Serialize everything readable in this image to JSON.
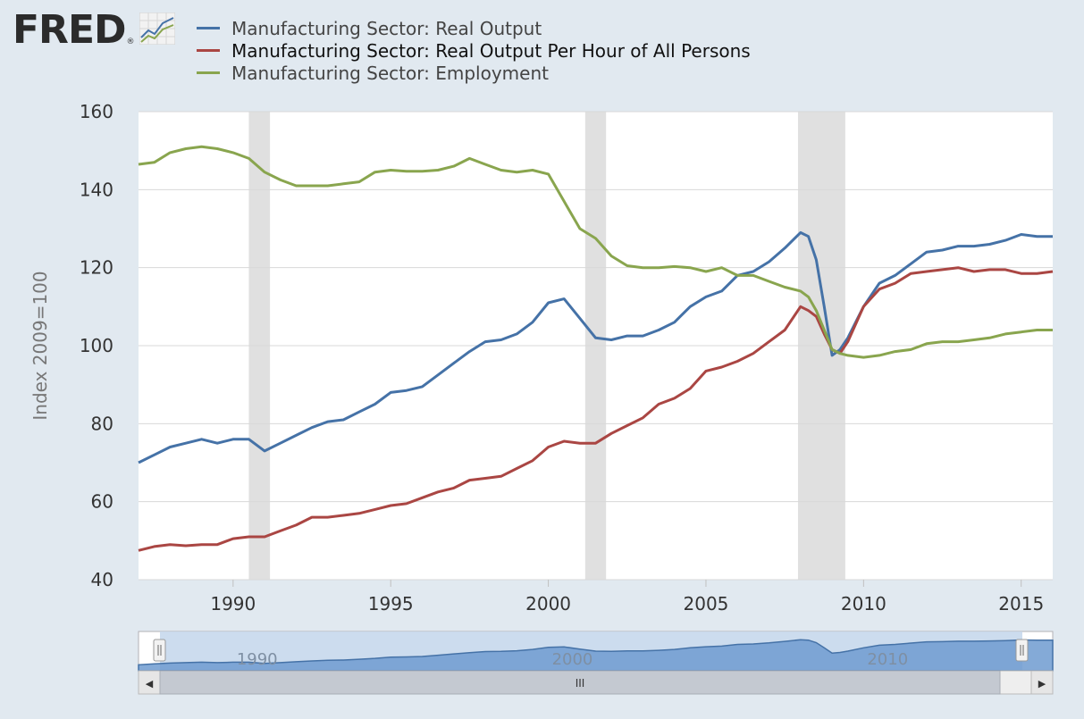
{
  "logo": {
    "text": "FRED",
    "registered": "®",
    "icon": "fred-chart-icon"
  },
  "colors": {
    "real_output": "#4572a7",
    "productivity": "#aa4643",
    "employment": "#89a54e",
    "recession": "#e0e0e0",
    "grid": "#d8d8d8"
  },
  "navigator": {
    "labels": [
      "1990",
      "2000",
      "2010"
    ],
    "scrollbar_grip": "III",
    "left_arrow": "◀",
    "right_arrow": "▶"
  },
  "chart_data": {
    "type": "line",
    "xlim": [
      1987.0,
      2016.0
    ],
    "ylim": [
      40,
      160
    ],
    "yticks": [
      40,
      60,
      80,
      100,
      120,
      140,
      160
    ],
    "xticks": [
      1990,
      1995,
      2000,
      2005,
      2010,
      2015
    ],
    "ylabel": "Index 2009=100",
    "grid": true,
    "legend_position": "top",
    "recessions": [
      [
        1990.5,
        1991.17
      ],
      [
        2001.17,
        2001.83
      ],
      [
        2007.92,
        2009.42
      ]
    ],
    "series": [
      {
        "name": "Manufacturing Sector: Real Output",
        "color": "#4572a7",
        "x": [
          1987.0,
          1987.5,
          1988.0,
          1988.5,
          1989.0,
          1989.5,
          1990.0,
          1990.5,
          1991.0,
          1991.5,
          1992.0,
          1992.5,
          1993.0,
          1993.5,
          1994.0,
          1994.5,
          1995.0,
          1995.5,
          1996.0,
          1996.5,
          1997.0,
          1997.5,
          1998.0,
          1998.5,
          1999.0,
          1999.5,
          2000.0,
          2000.5,
          2001.0,
          2001.5,
          2002.0,
          2002.5,
          2003.0,
          2003.5,
          2004.0,
          2004.5,
          2005.0,
          2005.5,
          2006.0,
          2006.5,
          2007.0,
          2007.5,
          2008.0,
          2008.25,
          2008.5,
          2008.75,
          2009.0,
          2009.25,
          2009.5,
          2010.0,
          2010.5,
          2011.0,
          2011.5,
          2012.0,
          2012.5,
          2013.0,
          2013.5,
          2014.0,
          2014.5,
          2015.0,
          2015.5,
          2016.0
        ],
        "y": [
          70,
          72,
          74,
          75,
          76,
          75,
          76,
          76,
          73,
          75,
          77,
          79,
          80.5,
          81,
          83,
          85,
          88,
          88.5,
          89.5,
          92.5,
          95.5,
          98.5,
          101,
          101.5,
          103,
          106,
          111,
          112,
          107,
          102,
          101.5,
          102.5,
          102.5,
          104,
          106,
          110,
          112.5,
          114,
          118,
          119,
          121.5,
          125,
          129,
          128,
          122,
          110,
          97.5,
          99,
          102,
          110,
          116,
          118,
          121,
          124,
          124.5,
          125.5,
          125.5,
          126,
          127,
          128.5,
          128,
          128
        ]
      },
      {
        "name": "Manufacturing Sector: Real Output Per Hour of All Persons",
        "color": "#aa4643",
        "x": [
          1987.0,
          1987.5,
          1988.0,
          1988.5,
          1989.0,
          1989.5,
          1990.0,
          1990.5,
          1991.0,
          1991.5,
          1992.0,
          1992.5,
          1993.0,
          1993.5,
          1994.0,
          1994.5,
          1995.0,
          1995.5,
          1996.0,
          1996.5,
          1997.0,
          1997.5,
          1998.0,
          1998.5,
          1999.0,
          1999.5,
          2000.0,
          2000.5,
          2001.0,
          2001.5,
          2002.0,
          2002.5,
          2003.0,
          2003.5,
          2004.0,
          2004.5,
          2005.0,
          2005.5,
          2006.0,
          2006.5,
          2007.0,
          2007.5,
          2008.0,
          2008.25,
          2008.5,
          2008.75,
          2009.0,
          2009.25,
          2009.5,
          2010.0,
          2010.5,
          2011.0,
          2011.5,
          2012.0,
          2012.5,
          2013.0,
          2013.5,
          2014.0,
          2014.5,
          2015.0,
          2015.5,
          2016.0
        ],
        "y": [
          47.5,
          48.5,
          49,
          48.7,
          49,
          49,
          50.5,
          51,
          51,
          52.5,
          54,
          56,
          56,
          56.5,
          57,
          58,
          59,
          59.5,
          61,
          62.5,
          63.5,
          65.5,
          66,
          66.5,
          68.5,
          70.5,
          74,
          75.5,
          75,
          75,
          77.5,
          79.5,
          81.5,
          85,
          86.5,
          89,
          93.5,
          94.5,
          96,
          98,
          101,
          104,
          110,
          109,
          107.5,
          103,
          99,
          98,
          101,
          110,
          114.5,
          116,
          118.5,
          119,
          119.5,
          120,
          119,
          119.5,
          119.5,
          118.5,
          118.5,
          119
        ]
      },
      {
        "name": "Manufacturing Sector: Employment",
        "color": "#89a54e",
        "x": [
          1987.0,
          1987.5,
          1988.0,
          1988.5,
          1989.0,
          1989.5,
          1990.0,
          1990.5,
          1991.0,
          1991.5,
          1992.0,
          1992.5,
          1993.0,
          1993.5,
          1994.0,
          1994.5,
          1995.0,
          1995.5,
          1996.0,
          1996.5,
          1997.0,
          1997.5,
          1998.0,
          1998.5,
          1999.0,
          1999.5,
          2000.0,
          2000.5,
          2001.0,
          2001.5,
          2002.0,
          2002.5,
          2003.0,
          2003.5,
          2004.0,
          2004.5,
          2005.0,
          2005.5,
          2006.0,
          2006.5,
          2007.0,
          2007.5,
          2008.0,
          2008.25,
          2008.5,
          2008.75,
          2009.0,
          2009.25,
          2009.5,
          2010.0,
          2010.5,
          2011.0,
          2011.5,
          2012.0,
          2012.5,
          2013.0,
          2013.5,
          2014.0,
          2014.5,
          2015.0,
          2015.5,
          2016.0
        ],
        "y": [
          146.5,
          147,
          149.5,
          150.5,
          151,
          150.5,
          149.5,
          148,
          144.5,
          142.5,
          141,
          141,
          141,
          141.5,
          142,
          144.5,
          145,
          144.7,
          144.7,
          145,
          146,
          148,
          146.5,
          145,
          144.5,
          145,
          144,
          137,
          130,
          127.5,
          123,
          120.5,
          120,
          120,
          120.3,
          120,
          119,
          120,
          118,
          118,
          116.5,
          115,
          114,
          112.5,
          109,
          104,
          99,
          98,
          97.5,
          97,
          97.5,
          98.5,
          99,
          100.5,
          101,
          101,
          101.5,
          102,
          103,
          103.5,
          104,
          104
        ]
      }
    ]
  }
}
